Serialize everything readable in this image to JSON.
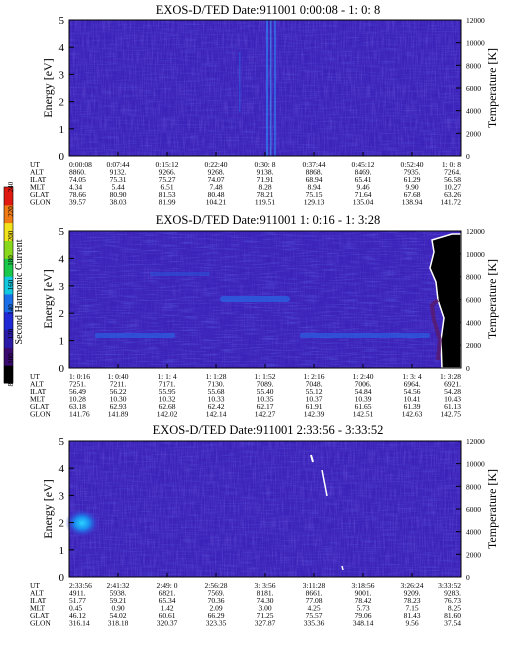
{
  "colorbar": {
    "label": "Second Harmonic Current",
    "ticks": [
      "80",
      "100",
      "120",
      "140",
      "160",
      "180",
      "200",
      "220",
      "240"
    ],
    "colors": [
      "#000000",
      "#3a0a6e",
      "#2a1aa8",
      "#1f2ad6",
      "#1a6fe8",
      "#12c9e0",
      "#1ac84a",
      "#8ad81c",
      "#f2e21a",
      "#f07a14",
      "#e01a10"
    ]
  },
  "chart_data": [
    {
      "type": "heatmap",
      "title": "EXOS-D/TED   Date:911001  0:00:08 - 1: 0: 8",
      "ylabel": "Energy [eV]",
      "y2label": "Temperature [K]",
      "ylim": [
        0,
        5
      ],
      "y2lim": [
        0,
        12000
      ],
      "yticks": [
        "0",
        "1",
        "2",
        "3",
        "4",
        "5"
      ],
      "y2ticks": [
        "0",
        "2000",
        "4000",
        "6000",
        "8000",
        "10000",
        "12000"
      ],
      "time_table": {
        "row_labels": [
          "UT",
          "ALT",
          "ILAT",
          "MLT",
          "GLAT",
          "GLON"
        ],
        "columns": [
          [
            "0:00:08",
            "8860.",
            "74.05",
            "4.34",
            "78.66",
            "39.57"
          ],
          [
            "0:07:44",
            "9132.",
            "75.31",
            "5.44",
            "80.90",
            "38.03"
          ],
          [
            "0:15:12",
            "9266.",
            "75.27",
            "6.51",
            "81.53",
            "81.99"
          ],
          [
            "0:22:40",
            "9268.",
            "74.07",
            "7.48",
            "80.48",
            "104.21"
          ],
          [
            "0:30: 8",
            "9138.",
            "71.91",
            "8.28",
            "78.21",
            "119.51"
          ],
          [
            "0:37:44",
            "8868.",
            "68.94",
            "8.94",
            "75.15",
            "129.13"
          ],
          [
            "0:45:12",
            "8469.",
            "65.41",
            "9.46",
            "71.64",
            "135.04"
          ],
          [
            "0:52:40",
            "7935.",
            "61.29",
            "9.90",
            "67.68",
            "138.94"
          ],
          [
            "1: 0: 8",
            "7264.",
            "56.58",
            "10.27",
            "63.26",
            "141.72"
          ]
        ]
      }
    },
    {
      "type": "heatmap",
      "title": "EXOS-D/TED   Date:911001  1: 0:16 - 1: 3:28",
      "ylabel": "Energy [eV]",
      "y2label": "Temperature [K]",
      "ylim": [
        0,
        5
      ],
      "y2lim": [
        0,
        12000
      ],
      "yticks": [
        "0",
        "1",
        "2",
        "3",
        "4",
        "5"
      ],
      "y2ticks": [
        "0",
        "2000",
        "4000",
        "6000",
        "8000",
        "10000",
        "12000"
      ],
      "time_table": {
        "row_labels": [
          "UT",
          "ALT",
          "ILAT",
          "MLT",
          "GLAT",
          "GLON"
        ],
        "columns": [
          [
            "1: 0:16",
            "7251.",
            "56.49",
            "10.28",
            "63.18",
            "141.76"
          ],
          [
            "1: 0:40",
            "7211.",
            "56.22",
            "10.30",
            "62.93",
            "141.89"
          ],
          [
            "1: 1: 4",
            "7171.",
            "55.95",
            "10.32",
            "62.68",
            "142.02"
          ],
          [
            "1: 1:28",
            "7130.",
            "55.68",
            "10.33",
            "62.42",
            "142.14"
          ],
          [
            "1: 1:52",
            "7089.",
            "55.40",
            "10.35",
            "62.17",
            "142.27"
          ],
          [
            "1: 2:16",
            "7048.",
            "55.12",
            "10.37",
            "61.91",
            "142.39"
          ],
          [
            "1: 2:40",
            "7006.",
            "54.84",
            "10.39",
            "61.65",
            "142.51"
          ],
          [
            "1: 3: 4",
            "6964.",
            "54.56",
            "10.41",
            "61.39",
            "142.63"
          ],
          [
            "1: 3:28",
            "6921.",
            "54.28",
            "10.43",
            "61.13",
            "142.75"
          ]
        ]
      }
    },
    {
      "type": "heatmap",
      "title": "EXOS-D/TED   Date:911001  2:33:56 - 3:33:52",
      "ylabel": "Energy [eV]",
      "y2label": "Temperature [K]",
      "ylim": [
        0,
        5
      ],
      "y2lim": [
        0,
        12000
      ],
      "yticks": [
        "0",
        "1",
        "2",
        "3",
        "4",
        "5"
      ],
      "y2ticks": [
        "0",
        "2000",
        "4000",
        "6000",
        "8000",
        "10000",
        "12000"
      ],
      "time_table": {
        "row_labels": [
          "UT",
          "ALT",
          "ILAT",
          "MLT",
          "GLAT",
          "GLON"
        ],
        "columns": [
          [
            "2:33:56",
            "4911.",
            "51.77",
            "0.45",
            "46.12",
            "316.14"
          ],
          [
            "2:41:32",
            "5938.",
            "59.21",
            "0.90",
            "54.02",
            "318.18"
          ],
          [
            "2:49: 0",
            "6821.",
            "65.34",
            "1.42",
            "60.61",
            "320.37"
          ],
          [
            "2:56:28",
            "7569.",
            "70.36",
            "2.09",
            "66.29",
            "323.35"
          ],
          [
            "3: 3:56",
            "8181.",
            "74.30",
            "3.00",
            "71.25",
            "327.87"
          ],
          [
            "3:11:28",
            "8661.",
            "77.08",
            "4.25",
            "75.57",
            "335.36"
          ],
          [
            "3:18:56",
            "9001.",
            "78.42",
            "5.73",
            "79.06",
            "348.14"
          ],
          [
            "3:26:24",
            "9209.",
            "78.23",
            "7.15",
            "81.43",
            "9.56"
          ],
          [
            "3:33:52",
            "9283.",
            "76.73",
            "8.25",
            "81.60",
            "37.54"
          ]
        ]
      }
    }
  ]
}
